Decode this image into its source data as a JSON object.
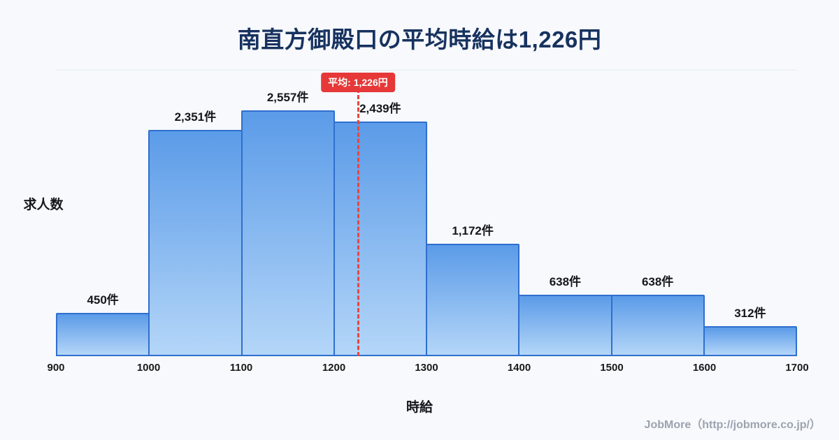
{
  "page": {
    "title": "南直方御殿口の平均時給は1,226円"
  },
  "chart_data": {
    "type": "bar",
    "title": "南直方御殿口の平均時給は1,226円",
    "categories": [
      "900-1000",
      "1000-1100",
      "1100-1200",
      "1200-1300",
      "1300-1400",
      "1400-1500",
      "1500-1600",
      "1600-1700"
    ],
    "values": [
      450,
      2351,
      2557,
      2439,
      1172,
      638,
      638,
      312
    ],
    "value_labels": [
      "450件",
      "2,351件",
      "2,557件",
      "2,439件",
      "1,172件",
      "638件",
      "638件",
      "312件"
    ],
    "x_ticks": [
      "900",
      "1000",
      "1100",
      "1200",
      "1300",
      "1400",
      "1500",
      "1600",
      "1700"
    ],
    "x_min": 900,
    "x_max": 1700,
    "xlabel": "時給",
    "ylabel": "求人数",
    "ylim": [
      0,
      2970
    ],
    "average": 1226,
    "average_label": "平均: 1,226円",
    "legend": "none",
    "grid": "off"
  },
  "footer": {
    "credit": "JobMore（http://jobmore.co.jp/）"
  },
  "colors": {
    "background": "#f7f9fc",
    "title": "#17325f",
    "bar_gradient_top": "#5b9be8",
    "bar_gradient_bottom": "#b4d6f8",
    "bar_border": "#2f6fce",
    "average_line": "#e8463f",
    "badge_background": "#e63838",
    "footer_text": "#9ca3af"
  }
}
